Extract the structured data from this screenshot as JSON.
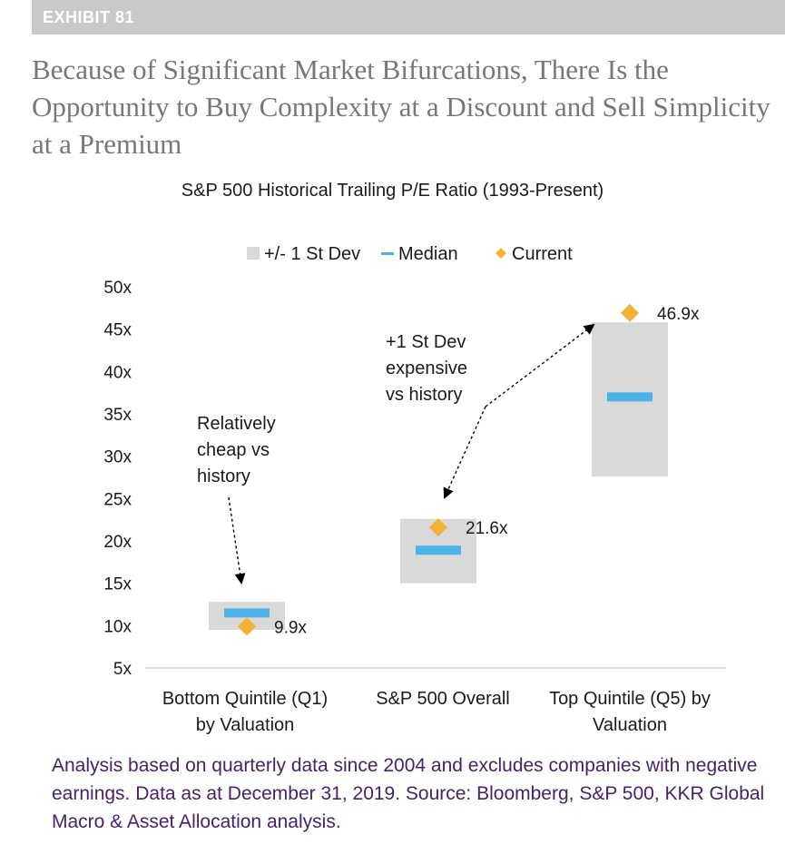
{
  "exhibit_label": "EXHIBIT 81",
  "headline": "Because of Significant Market Bifurcations, There Is the Opportunity to Buy Complexity at a Discount and Sell Simplicity at a Premium",
  "chart_data": {
    "type": "floating-bar",
    "title": "S&P 500 Historical Trailing P/E Ratio (1993-Present)",
    "legend": {
      "range_label": "+/- 1 St Dev",
      "median_label": "Median",
      "current_label": "Current",
      "placement": "top-center"
    },
    "y_ticks": [
      5,
      10,
      15,
      20,
      25,
      30,
      35,
      40,
      45,
      50
    ],
    "y_tick_labels": [
      "5x",
      "10x",
      "15x",
      "20x",
      "25x",
      "30x",
      "35x",
      "40x",
      "45x",
      "50x"
    ],
    "ylim": [
      5,
      50
    ],
    "categories": [
      {
        "label_lines": [
          "Bottom Quintile (Q1)",
          "by Valuation"
        ],
        "low": 9.5,
        "high": 12.8,
        "median": 11.5,
        "current": 9.9,
        "current_label": "9.9x"
      },
      {
        "label_lines": [
          "S&P 500 Overall"
        ],
        "low": 15.0,
        "high": 22.6,
        "median": 18.9,
        "current": 21.6,
        "current_label": "21.6x"
      },
      {
        "label_lines": [
          "Top Quintile (Q5) by",
          "Valuation"
        ],
        "low": 27.6,
        "high": 45.8,
        "median": 37.0,
        "current": 46.9,
        "current_label": "46.9x"
      }
    ],
    "annotations": [
      {
        "lines": [
          "Relatively",
          "cheap vs",
          "history"
        ]
      },
      {
        "lines": [
          "+1 St Dev",
          "expensive",
          "vs history"
        ]
      }
    ],
    "colors": {
      "range": "#d9d9d9",
      "median": "#4db3e6",
      "current": "#f5b335",
      "axis": "#bfbfbf"
    }
  },
  "footnote": "Analysis based on quarterly data since 2004 and excludes companies with negative earnings. Data as at December 31, 2019. Source: Bloomberg, S&P 500, KKR Global Macro & Asset Allocation analysis."
}
